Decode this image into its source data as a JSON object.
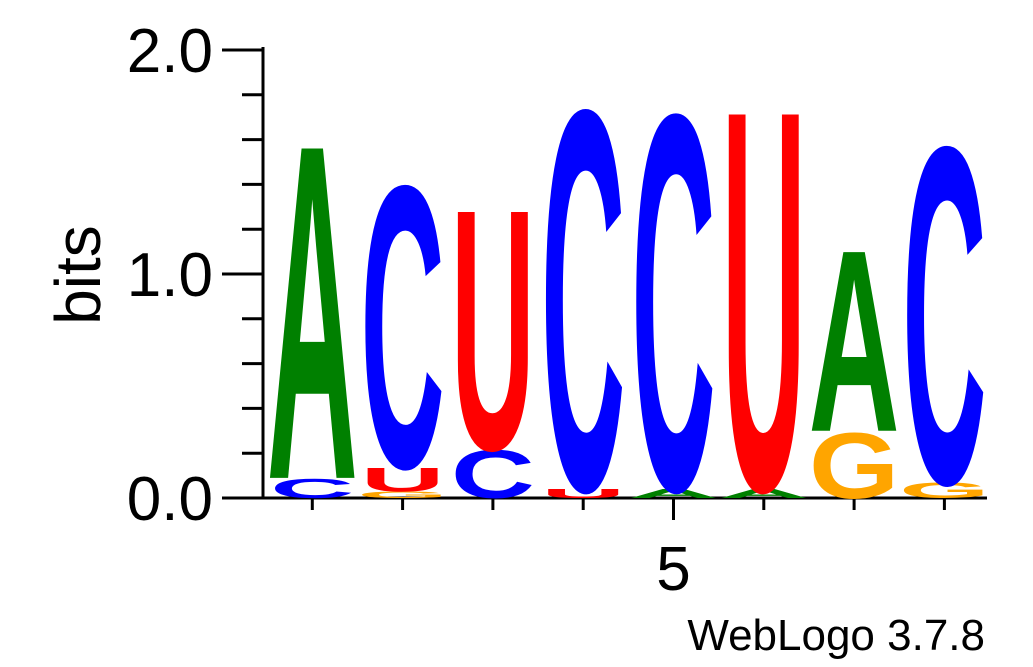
{
  "chart_data": {
    "type": "sequence-logo",
    "ylabel": "bits",
    "ylim": [
      0,
      2.0
    ],
    "y_ticks": [
      "0.0",
      "1.0",
      "2.0"
    ],
    "x_tick_labels": [
      {
        "position": 5,
        "label": "5"
      }
    ],
    "credit": "WebLogo 3.7.8",
    "colors": {
      "A": "#008000",
      "C": "#0000ff",
      "G": "#ffa500",
      "U": "#ff0000"
    },
    "positions": [
      {
        "position": 1,
        "stack": [
          {
            "letter": "C",
            "bits": 0.09
          },
          {
            "letter": "A",
            "bits": 1.53
          }
        ]
      },
      {
        "position": 2,
        "stack": [
          {
            "letter": "G",
            "bits": 0.03
          },
          {
            "letter": "U",
            "bits": 0.11
          },
          {
            "letter": "C",
            "bits": 1.29
          }
        ]
      },
      {
        "position": 3,
        "stack": [
          {
            "letter": "C",
            "bits": 0.22
          },
          {
            "letter": "U",
            "bits": 1.1
          }
        ]
      },
      {
        "position": 4,
        "stack": [
          {
            "letter": "U",
            "bits": 0.04
          },
          {
            "letter": "C",
            "bits": 1.74
          }
        ]
      },
      {
        "position": 5,
        "stack": [
          {
            "letter": "A",
            "bits": 0.04
          },
          {
            "letter": "C",
            "bits": 1.72
          }
        ]
      },
      {
        "position": 6,
        "stack": [
          {
            "letter": "A",
            "bits": 0.04
          },
          {
            "letter": "U",
            "bits": 1.74
          }
        ]
      },
      {
        "position": 7,
        "stack": [
          {
            "letter": "G",
            "bits": 0.3
          },
          {
            "letter": "A",
            "bits": 0.83
          }
        ]
      },
      {
        "position": 8,
        "stack": [
          {
            "letter": "G",
            "bits": 0.07
          },
          {
            "letter": "C",
            "bits": 1.54
          }
        ]
      }
    ]
  }
}
